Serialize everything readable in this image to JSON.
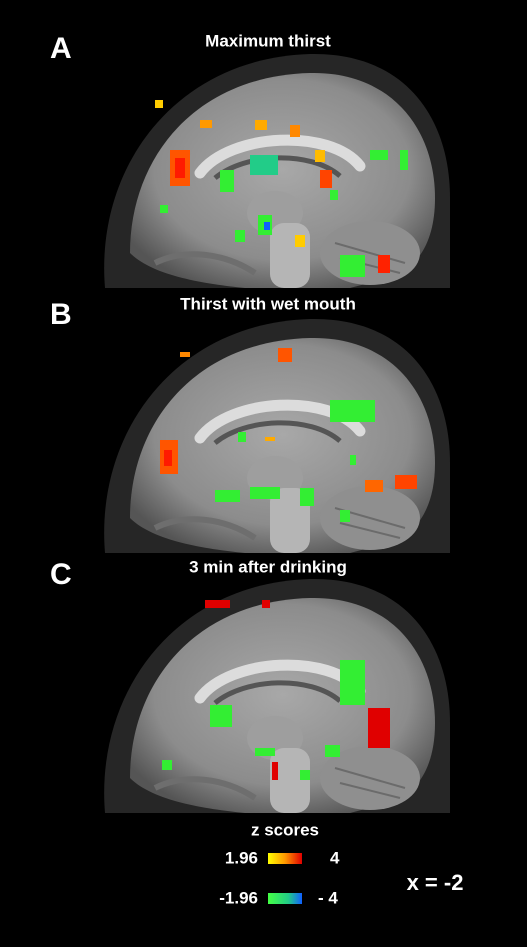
{
  "panels": [
    {
      "letter": "A",
      "title": "Maximum thirst"
    },
    {
      "letter": "B",
      "title": "Thirst with wet mouth"
    },
    {
      "letter": "C",
      "title": "3 min after drinking"
    }
  ],
  "legend": {
    "title": "z scores",
    "positive_min": "1.96",
    "positive_max": "4",
    "negative_min": "-1.96",
    "negative_max": "- 4"
  },
  "coordinate": "x = -2"
}
